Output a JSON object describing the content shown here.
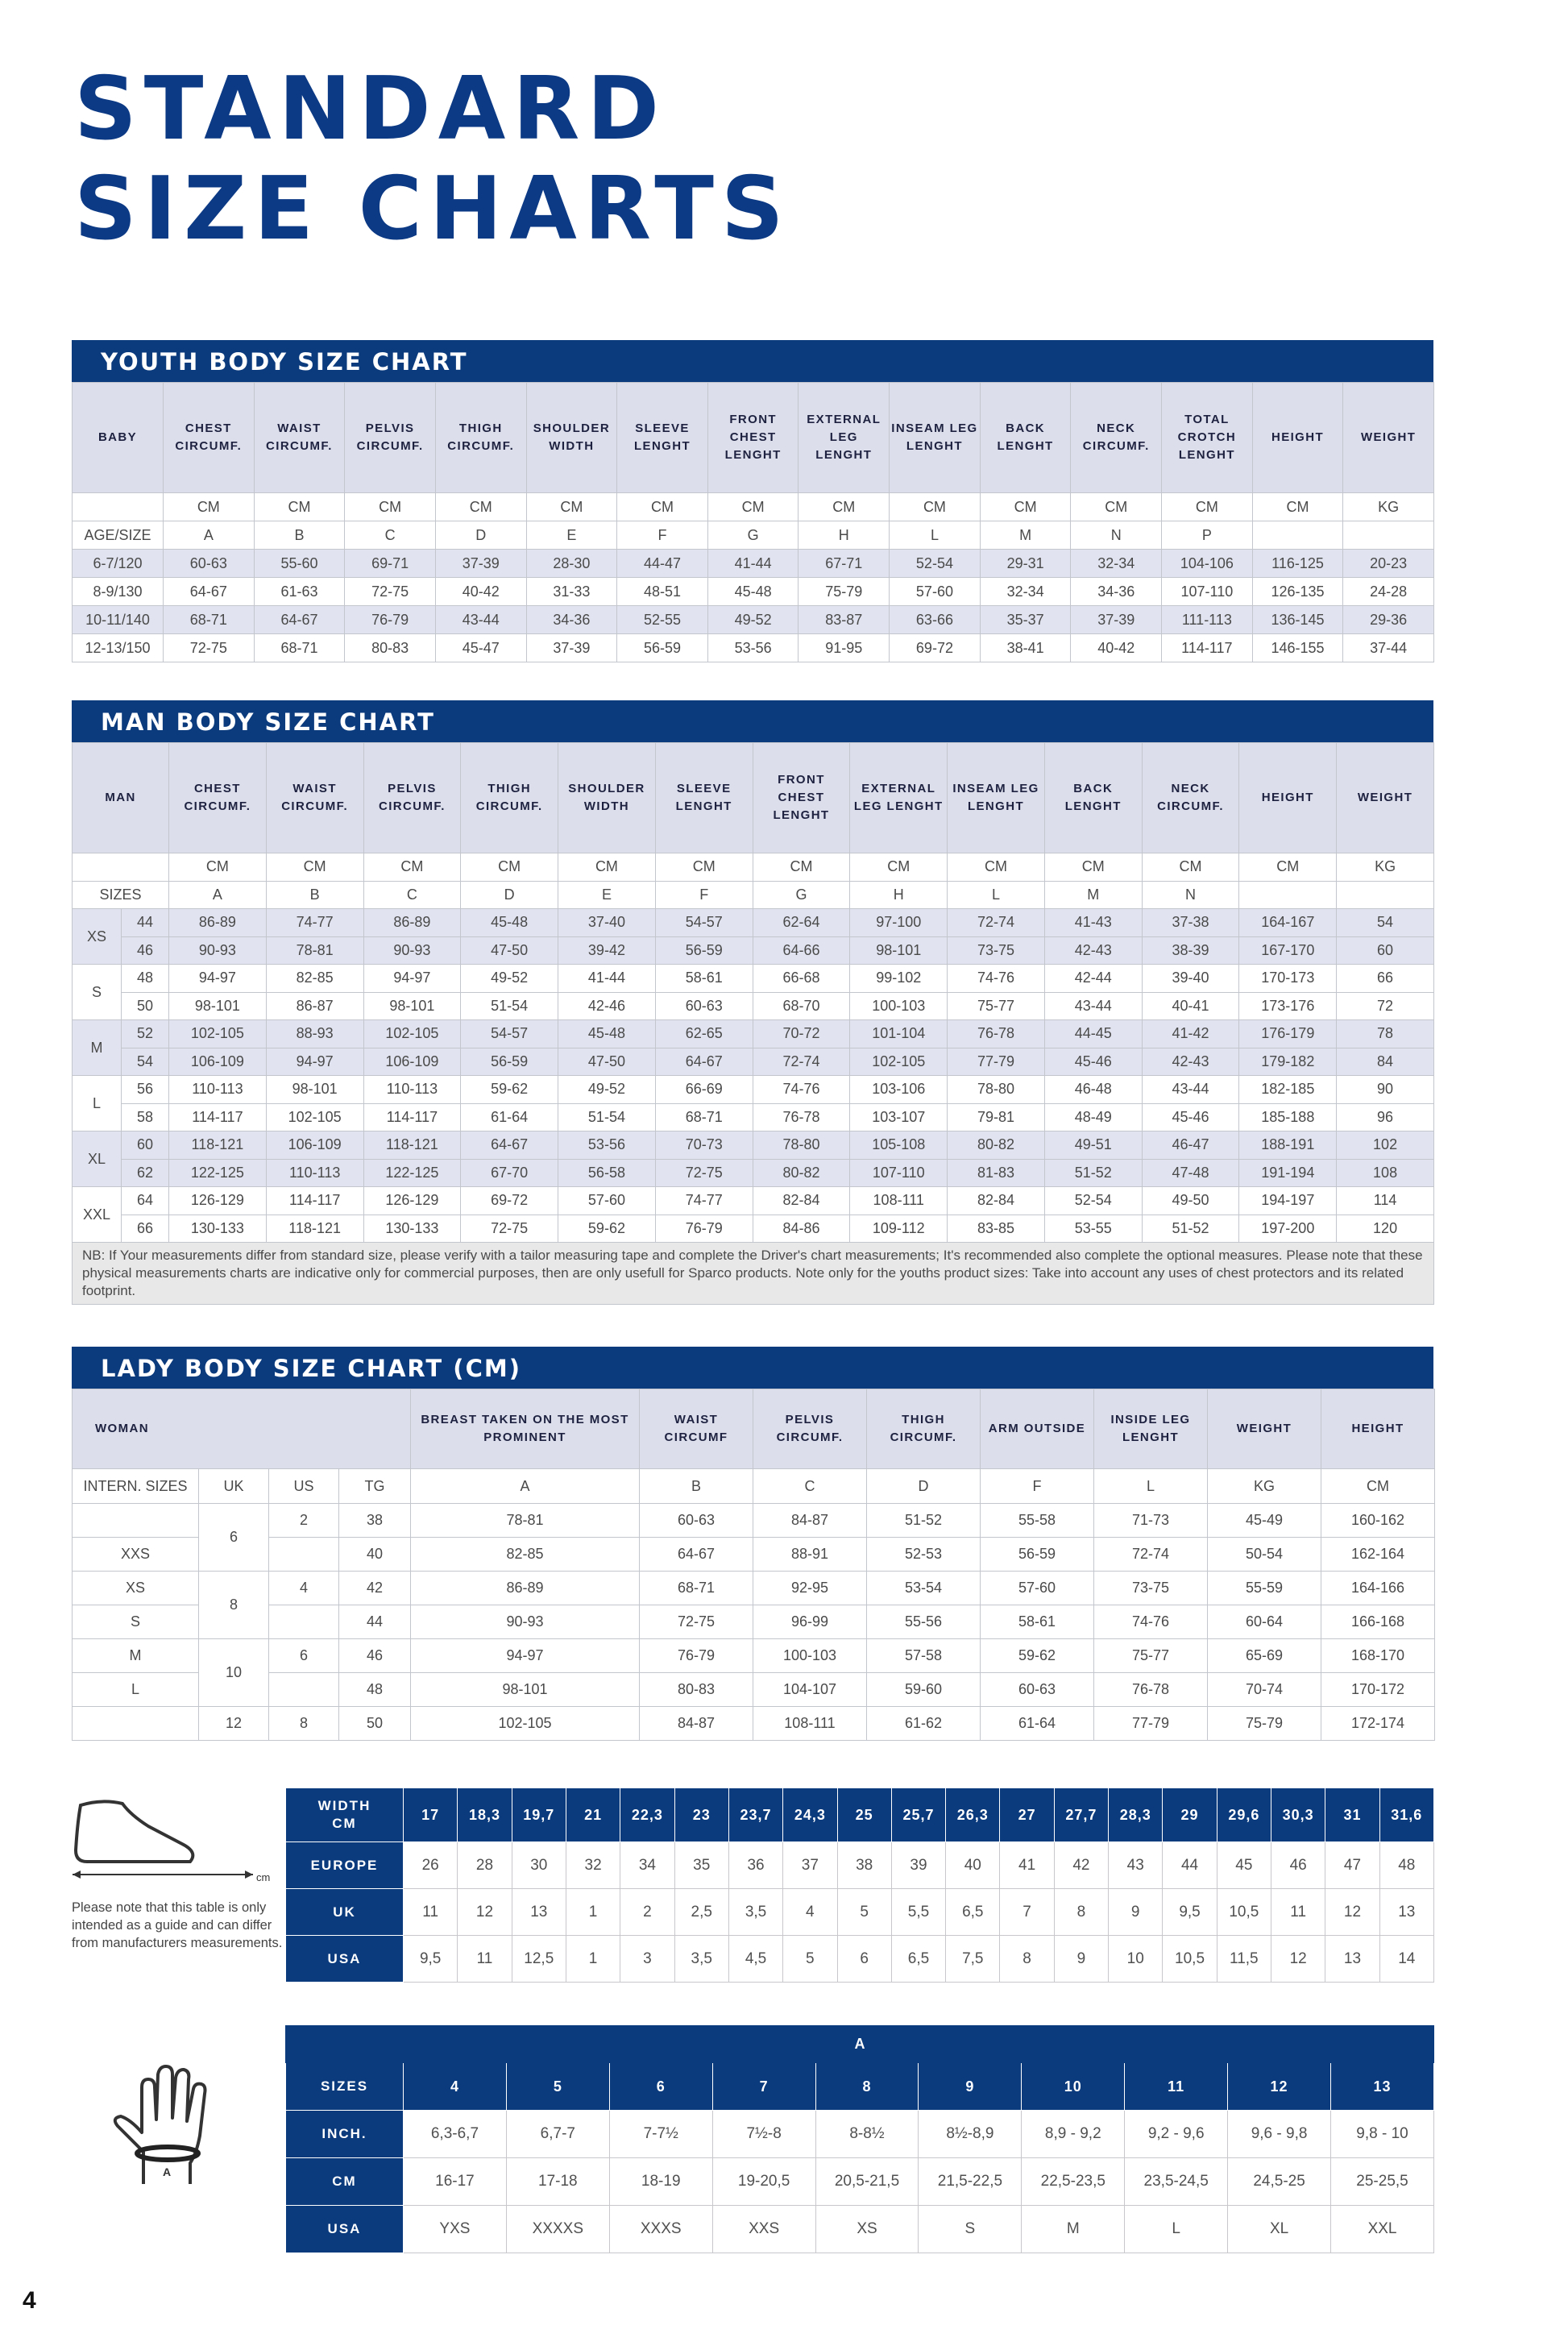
{
  "title_lines": [
    "STANDARD",
    "SIZE CHARTS"
  ],
  "youth": {
    "title": "YOUTH BODY SIZE CHART",
    "header": [
      "BABY",
      "CHEST CIRCUMF.",
      "WAIST CIRCUMF.",
      "PELVIS CIRCUMF.",
      "THIGH CIRCUMF.",
      "SHOULDER WIDTH",
      "SLEEVE LENGHT",
      "FRONT CHEST LENGHT",
      "EXTERNAL LEG LENGHT",
      "INSEAM LEG LENGHT",
      "BACK LENGHT",
      "NECK CIRCUMF.",
      "TOTAL CROTCH LENGHT",
      "HEIGHT",
      "WEIGHT"
    ],
    "units": [
      null,
      "CM",
      "CM",
      "CM",
      "CM",
      "CM",
      "CM",
      "CM",
      "CM",
      "CM",
      "CM",
      "CM",
      "CM",
      "CM",
      "KG"
    ],
    "letters": [
      "AGE/SIZE",
      "A",
      "B",
      "C",
      "D",
      "E",
      "F",
      "G",
      "H",
      "L",
      "M",
      "N",
      "P",
      null,
      null
    ],
    "rows": [
      [
        "6-7/120",
        "60-63",
        "55-60",
        "69-71",
        "37-39",
        "28-30",
        "44-47",
        "41-44",
        "67-71",
        "52-54",
        "29-31",
        "32-34",
        "104-106",
        "116-125",
        "20-23"
      ],
      [
        "8-9/130",
        "64-67",
        "61-63",
        "72-75",
        "40-42",
        "31-33",
        "48-51",
        "45-48",
        "75-79",
        "57-60",
        "32-34",
        "34-36",
        "107-110",
        "126-135",
        "24-28"
      ],
      [
        "10-11/140",
        "68-71",
        "64-67",
        "76-79",
        "43-44",
        "34-36",
        "52-55",
        "49-52",
        "83-87",
        "63-66",
        "35-37",
        "37-39",
        "111-113",
        "136-145",
        "29-36"
      ],
      [
        "12-13/150",
        "72-75",
        "68-71",
        "80-83",
        "45-47",
        "37-39",
        "56-59",
        "53-56",
        "91-95",
        "69-72",
        "38-41",
        "40-42",
        "114-117",
        "146-155",
        "37-44"
      ]
    ]
  },
  "man": {
    "title": "MAN BODY SIZE CHART",
    "header": [
      "MAN",
      "CHEST CIRCUMF.",
      "WAIST CIRCUMF.",
      "PELVIS CIRCUMF.",
      "THIGH CIRCUMF.",
      "SHOULDER WIDTH",
      "SLEEVE LENGHT",
      "FRONT CHEST LENGHT",
      "EXTERNAL LEG LENGHT",
      "INSEAM LEG LENGHT",
      "BACK LENGHT",
      "NECK CIRCUMF.",
      "HEIGHT",
      "WEIGHT"
    ],
    "units": [
      null,
      "CM",
      "CM",
      "CM",
      "CM",
      "CM",
      "CM",
      "CM",
      "CM",
      "CM",
      "CM",
      "CM",
      "CM",
      "KG"
    ],
    "letters": [
      "SIZES",
      "A",
      "B",
      "C",
      "D",
      "E",
      "F",
      "G",
      "H",
      "L",
      "M",
      "N",
      null,
      null
    ],
    "groups": [
      {
        "size": "XS",
        "rows": [
          [
            "44",
            "86-89",
            "74-77",
            "86-89",
            "45-48",
            "37-40",
            "54-57",
            "62-64",
            "97-100",
            "72-74",
            "41-43",
            "37-38",
            "164-167",
            "54"
          ],
          [
            "46",
            "90-93",
            "78-81",
            "90-93",
            "47-50",
            "39-42",
            "56-59",
            "64-66",
            "98-101",
            "73-75",
            "42-43",
            "38-39",
            "167-170",
            "60"
          ]
        ]
      },
      {
        "size": "S",
        "rows": [
          [
            "48",
            "94-97",
            "82-85",
            "94-97",
            "49-52",
            "41-44",
            "58-61",
            "66-68",
            "99-102",
            "74-76",
            "42-44",
            "39-40",
            "170-173",
            "66"
          ],
          [
            "50",
            "98-101",
            "86-87",
            "98-101",
            "51-54",
            "42-46",
            "60-63",
            "68-70",
            "100-103",
            "75-77",
            "43-44",
            "40-41",
            "173-176",
            "72"
          ]
        ]
      },
      {
        "size": "M",
        "rows": [
          [
            "52",
            "102-105",
            "88-93",
            "102-105",
            "54-57",
            "45-48",
            "62-65",
            "70-72",
            "101-104",
            "76-78",
            "44-45",
            "41-42",
            "176-179",
            "78"
          ],
          [
            "54",
            "106-109",
            "94-97",
            "106-109",
            "56-59",
            "47-50",
            "64-67",
            "72-74",
            "102-105",
            "77-79",
            "45-46",
            "42-43",
            "179-182",
            "84"
          ]
        ]
      },
      {
        "size": "L",
        "rows": [
          [
            "56",
            "110-113",
            "98-101",
            "110-113",
            "59-62",
            "49-52",
            "66-69",
            "74-76",
            "103-106",
            "78-80",
            "46-48",
            "43-44",
            "182-185",
            "90"
          ],
          [
            "58",
            "114-117",
            "102-105",
            "114-117",
            "61-64",
            "51-54",
            "68-71",
            "76-78",
            "103-107",
            "79-81",
            "48-49",
            "45-46",
            "185-188",
            "96"
          ]
        ]
      },
      {
        "size": "XL",
        "rows": [
          [
            "60",
            "118-121",
            "106-109",
            "118-121",
            "64-67",
            "53-56",
            "70-73",
            "78-80",
            "105-108",
            "80-82",
            "49-51",
            "46-47",
            "188-191",
            "102"
          ],
          [
            "62",
            "122-125",
            "110-113",
            "122-125",
            "67-70",
            "56-58",
            "72-75",
            "80-82",
            "107-110",
            "81-83",
            "51-52",
            "47-48",
            "191-194",
            "108"
          ]
        ]
      },
      {
        "size": "XXL",
        "rows": [
          [
            "64",
            "126-129",
            "114-117",
            "126-129",
            "69-72",
            "57-60",
            "74-77",
            "82-84",
            "108-111",
            "82-84",
            "52-54",
            "49-50",
            "194-197",
            "114"
          ],
          [
            "66",
            "130-133",
            "118-121",
            "130-133",
            "72-75",
            "59-62",
            "76-79",
            "84-86",
            "109-112",
            "83-85",
            "53-55",
            "51-52",
            "197-200",
            "120"
          ]
        ]
      }
    ],
    "note": "NB: If Your measurements differ from standard size, please verify with a tailor measuring tape and complete the Driver's chart measurements; It's recommended also complete the optional measures. Please note that these physical measurements charts are indicative only for commercial purposes, then are only usefull for Sparco products. Note only for the youths product sizes: Take into account any uses of chest protectors and its related footprint."
  },
  "lady": {
    "title": "LADY BODY SIZE CHART (CM)",
    "header": [
      "WOMAN",
      "BREAST TAKEN ON THE MOST PROMINENT",
      "WAIST CIRCUMF",
      "PELVIS CIRCUMF.",
      "THIGH CIRCUMF.",
      "ARM OUTSIDE",
      "INSIDE LEG LENGHT",
      "WEIGHT",
      "HEIGHT"
    ],
    "codes": [
      "INTERN. SIZES",
      "UK",
      "US",
      "TG",
      "A",
      "B",
      "C",
      "D",
      "F",
      "L",
      "KG",
      "CM"
    ],
    "rows": [
      {
        "intern": null,
        "uk": "6",
        "us": "2",
        "tg": "38",
        "values": [
          "78-81",
          "60-63",
          "84-87",
          "51-52",
          "55-58",
          "71-73",
          "45-49",
          "160-162"
        ]
      },
      {
        "intern": "XXS",
        "uk": null,
        "us": null,
        "tg": "40",
        "values": [
          "82-85",
          "64-67",
          "88-91",
          "52-53",
          "56-59",
          "72-74",
          "50-54",
          "162-164"
        ]
      },
      {
        "intern": "XS",
        "uk": "8",
        "us": "4",
        "tg": "42",
        "values": [
          "86-89",
          "68-71",
          "92-95",
          "53-54",
          "57-60",
          "73-75",
          "55-59",
          "164-166"
        ]
      },
      {
        "intern": "S",
        "uk": null,
        "us": null,
        "tg": "44",
        "values": [
          "90-93",
          "72-75",
          "96-99",
          "55-56",
          "58-61",
          "74-76",
          "60-64",
          "166-168"
        ]
      },
      {
        "intern": "M",
        "uk": "10",
        "us": "6",
        "tg": "46",
        "values": [
          "94-97",
          "76-79",
          "100-103",
          "57-58",
          "59-62",
          "75-77",
          "65-69",
          "168-170"
        ]
      },
      {
        "intern": "L",
        "uk": null,
        "us": null,
        "tg": "48",
        "values": [
          "98-101",
          "80-83",
          "104-107",
          "59-60",
          "60-63",
          "76-78",
          "70-74",
          "170-172"
        ]
      },
      {
        "intern": null,
        "uk": "12",
        "us": "8",
        "tg": "50",
        "values": [
          "102-105",
          "84-87",
          "108-111",
          "61-62",
          "61-64",
          "77-79",
          "75-79",
          "172-174"
        ]
      }
    ]
  },
  "shoes": {
    "icon_unit": "cm",
    "note": "Please note that this table is only intended as a guide and can differ from manufacturers measurements.",
    "rows": [
      {
        "label": "WIDTH CM",
        "values": [
          "17",
          "18,3",
          "19,7",
          "21",
          "22,3",
          "23",
          "23,7",
          "24,3",
          "25",
          "25,7",
          "26,3",
          "27",
          "27,7",
          "28,3",
          "29",
          "29,6",
          "30,3",
          "31",
          "31,6"
        ]
      },
      {
        "label": "EUROPE",
        "values": [
          "26",
          "28",
          "30",
          "32",
          "34",
          "35",
          "36",
          "37",
          "38",
          "39",
          "40",
          "41",
          "42",
          "43",
          "44",
          "45",
          "46",
          "47",
          "48"
        ]
      },
      {
        "label": "UK",
        "values": [
          "11",
          "12",
          "13",
          "1",
          "2",
          "2,5",
          "3,5",
          "4",
          "5",
          "5,5",
          "6,5",
          "7",
          "8",
          "9",
          "9,5",
          "10,5",
          "11",
          "12",
          "13"
        ]
      },
      {
        "label": "USA",
        "values": [
          "9,5",
          "11",
          "12,5",
          "1",
          "3",
          "3,5",
          "4,5",
          "5",
          "6",
          "6,5",
          "7,5",
          "8",
          "9",
          "10",
          "10,5",
          "11,5",
          "12",
          "13",
          "14"
        ]
      }
    ]
  },
  "gloves": {
    "header": "A",
    "icon_label": "A",
    "rows": [
      {
        "label": "SIZES",
        "values": [
          "4",
          "5",
          "6",
          "7",
          "8",
          "9",
          "10",
          "11",
          "12",
          "13"
        ]
      },
      {
        "label": "INCH.",
        "values": [
          "6,3-6,7",
          "6,7-7",
          "7-7½",
          "7½-8",
          "8-8½",
          "8½-8,9",
          "8,9 - 9,2",
          "9,2 - 9,6",
          "9,6 - 9,8",
          "9,8 - 10"
        ]
      },
      {
        "label": "CM",
        "values": [
          "16-17",
          "17-18",
          "18-19",
          "19-20,5",
          "20,5-21,5",
          "21,5-22,5",
          "22,5-23,5",
          "23,5-24,5",
          "24,5-25",
          "25-25,5"
        ]
      },
      {
        "label": "USA",
        "values": [
          "YXS",
          "XXXXS",
          "XXXS",
          "XXS",
          "XS",
          "S",
          "M",
          "L",
          "XL",
          "XXL"
        ]
      }
    ]
  },
  "page_number": "4"
}
